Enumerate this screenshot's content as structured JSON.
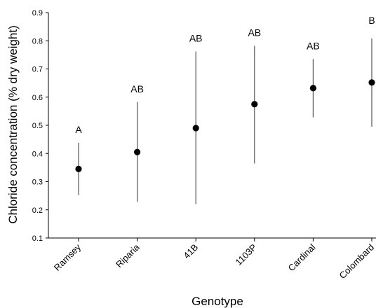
{
  "chart_data": {
    "type": "scatter",
    "xlabel": "Genotype",
    "ylabel": "Chloride concentration (% dry weight)",
    "categories": [
      "Ramsey",
      "Riparia",
      "41B",
      "1103P",
      "Cardinal",
      "Colombard"
    ],
    "values": [
      0.345,
      0.405,
      0.49,
      0.575,
      0.632,
      0.652
    ],
    "error_low": [
      0.252,
      0.228,
      0.22,
      0.365,
      0.528,
      0.495
    ],
    "error_high": [
      0.438,
      0.582,
      0.762,
      0.782,
      0.735,
      0.808
    ],
    "significance_labels": [
      "A",
      "AB",
      "AB",
      "AB",
      "AB",
      "B"
    ],
    "ylim": [
      0.1,
      0.9
    ],
    "yticks": [
      "0.1",
      "0.2",
      "0.3",
      "0.4",
      "0.5",
      "0.6",
      "0.7",
      "0.8",
      "0.9"
    ],
    "grid": false,
    "colors": {
      "marker": "#000000",
      "error_bar": "#555555",
      "axis": "#000000"
    }
  }
}
